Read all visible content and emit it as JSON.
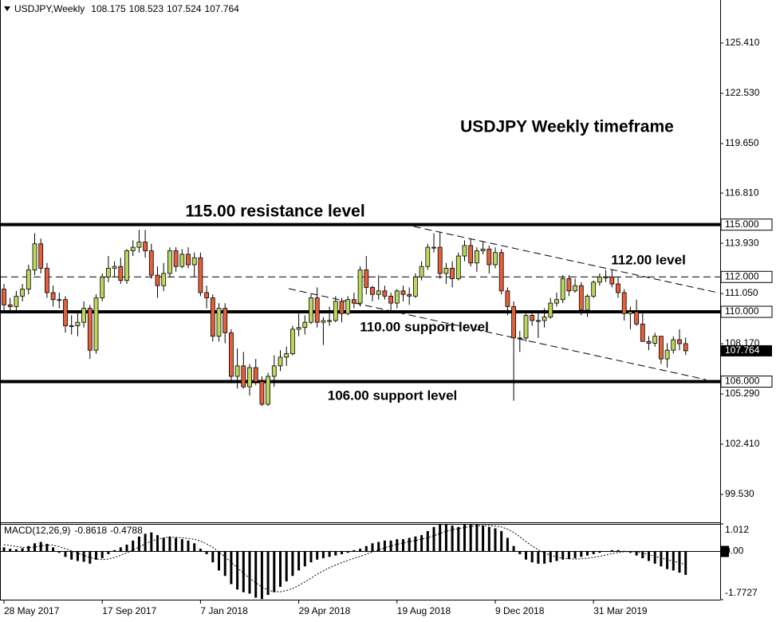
{
  "chart_data": [
    {
      "type": "candlestick",
      "title": "USDJPY,Weekly",
      "categories": [
        "28 May 2017",
        null,
        null,
        null,
        null,
        null,
        null,
        null,
        null,
        null,
        null,
        null,
        null,
        null,
        null,
        null,
        "17 Sep 2017",
        null,
        null,
        null,
        null,
        null,
        null,
        null,
        null,
        null,
        null,
        null,
        null,
        null,
        null,
        null,
        "7 Jan 2018",
        null,
        null,
        null,
        null,
        null,
        null,
        null,
        null,
        null,
        null,
        null,
        null,
        null,
        null,
        null,
        "29 Apr 2018",
        null,
        null,
        null,
        null,
        null,
        null,
        null,
        null,
        null,
        null,
        null,
        null,
        null,
        null,
        null,
        "19 Aug 2018",
        null,
        null,
        null,
        null,
        null,
        null,
        null,
        null,
        null,
        null,
        null,
        null,
        null,
        null,
        null,
        "9 Dec 2018",
        null,
        null,
        null,
        null,
        null,
        null,
        null,
        null,
        null,
        null,
        null,
        null,
        null,
        null,
        null,
        "31 Mar 2019",
        null,
        null,
        null,
        null,
        null,
        null,
        null,
        null,
        null,
        null,
        null,
        null,
        null,
        null,
        null
      ],
      "open": [
        111.3,
        110.4,
        110.3,
        110.9,
        111.3,
        112.4,
        113.9,
        112.5,
        111.1,
        110.7,
        110.7,
        109.2,
        109.2,
        109.4,
        110.2,
        107.8,
        110.8,
        112.0,
        112.5,
        112.6,
        111.8,
        113.5,
        113.7,
        114.0,
        113.5,
        112.1,
        111.5,
        112.2,
        113.5,
        112.6,
        113.3,
        112.7,
        113.1,
        111.1,
        110.8,
        108.6,
        110.2,
        108.8,
        106.3,
        106.9,
        105.7,
        106.8,
        106.0,
        104.7,
        106.3,
        106.9,
        107.4,
        107.6,
        109.0,
        109.1,
        109.4,
        110.8,
        109.4,
        109.5,
        109.5,
        110.6,
        109.9,
        110.7,
        110.5,
        112.4,
        111.4,
        111.0,
        111.2,
        110.9,
        110.5,
        111.2,
        111.0,
        110.9,
        112.0,
        112.6,
        113.7,
        113.7,
        112.2,
        112.5,
        111.9,
        113.2,
        113.8,
        112.8,
        113.5,
        113.6,
        112.7,
        113.4,
        111.2,
        110.3,
        108.5,
        108.5,
        109.8,
        109.5,
        109.5,
        109.7,
        110.5,
        110.7,
        111.9,
        111.2,
        111.5,
        110.1,
        110.9,
        111.7,
        112.0,
        112.0,
        111.6,
        111.1,
        109.9,
        110.0,
        109.3,
        108.3,
        108.2,
        108.6,
        107.3,
        107.8,
        108.4,
        108.175
      ],
      "high": [
        111.6,
        110.8,
        111.2,
        111.6,
        112.7,
        114.5,
        114.2,
        112.8,
        111.5,
        111.1,
        110.9,
        109.8,
        110.0,
        110.6,
        110.4,
        111.0,
        112.2,
        113.2,
        112.9,
        113.1,
        113.6,
        114.1,
        114.7,
        114.7,
        113.9,
        112.6,
        112.8,
        113.7,
        113.7,
        113.6,
        113.7,
        113.4,
        113.4,
        111.5,
        111.0,
        110.5,
        110.5,
        109.0,
        107.9,
        107.7,
        107.0,
        107.3,
        106.3,
        106.5,
        107.5,
        107.8,
        108.0,
        109.2,
        109.9,
        109.8,
        111.0,
        111.4,
        109.7,
        110.3,
        110.9,
        110.8,
        110.9,
        111.1,
        112.6,
        113.2,
        111.5,
        112.1,
        111.5,
        111.1,
        111.3,
        111.5,
        111.4,
        112.2,
        112.9,
        113.9,
        114.5,
        114.6,
        112.8,
        112.9,
        113.4,
        114.1,
        114.2,
        113.7,
        114.0,
        113.8,
        113.7,
        113.6,
        111.4,
        110.6,
        108.9,
        109.9,
        110.0,
        110.0,
        110.2,
        110.8,
        111.1,
        112.1,
        112.1,
        111.9,
        111.7,
        111.0,
        111.8,
        112.2,
        112.4,
        112.4,
        112.0,
        111.3,
        110.3,
        110.7,
        109.9,
        108.6,
        108.8,
        108.6,
        108.2,
        108.6,
        109.0,
        108.523
      ],
      "low": [
        110.0,
        109.9,
        110.0,
        110.6,
        111.0,
        112.1,
        112.2,
        110.8,
        110.3,
        110.2,
        108.8,
        108.7,
        108.6,
        109.1,
        107.3,
        107.6,
        110.6,
        111.7,
        112.0,
        111.6,
        111.6,
        113.2,
        113.4,
        113.1,
        111.9,
        110.8,
        111.2,
        112.0,
        112.3,
        112.5,
        112.5,
        112.0,
        110.9,
        110.2,
        108.3,
        108.3,
        108.2,
        105.9,
        105.6,
        105.6,
        105.2,
        105.8,
        104.6,
        104.6,
        105.7,
        106.6,
        106.9,
        107.5,
        108.6,
        108.7,
        109.3,
        109.1,
        108.1,
        109.2,
        109.4,
        109.4,
        109.8,
        110.2,
        110.3,
        111.0,
        110.6,
        110.7,
        110.7,
        110.1,
        110.2,
        110.6,
        110.4,
        110.8,
        111.8,
        112.4,
        113.4,
        111.9,
        111.6,
        111.4,
        111.8,
        112.9,
        112.6,
        112.3,
        113.3,
        112.2,
        112.5,
        111.0,
        109.8,
        104.9,
        107.7,
        108.3,
        109.2,
        108.5,
        109.1,
        109.6,
        110.3,
        110.5,
        110.9,
        111.1,
        109.8,
        109.7,
        110.8,
        111.5,
        111.7,
        111.4,
        110.8,
        109.5,
        109.0,
        109.2,
        108.3,
        107.8,
        108.0,
        107.0,
        106.8,
        107.6,
        107.8,
        107.524
      ],
      "close": [
        110.4,
        110.3,
        110.9,
        111.3,
        112.4,
        113.9,
        112.5,
        111.1,
        110.7,
        110.7,
        109.2,
        109.2,
        109.4,
        110.2,
        107.8,
        110.8,
        112.0,
        112.5,
        112.6,
        111.8,
        113.5,
        113.7,
        114.0,
        113.5,
        112.1,
        111.5,
        112.2,
        113.5,
        112.6,
        113.3,
        112.7,
        113.1,
        111.1,
        110.8,
        108.6,
        110.2,
        108.8,
        106.3,
        106.9,
        105.7,
        106.8,
        106.0,
        104.7,
        106.3,
        106.9,
        107.4,
        107.6,
        109.0,
        109.1,
        109.4,
        110.8,
        109.4,
        109.5,
        109.5,
        110.6,
        109.9,
        110.7,
        110.5,
        112.4,
        111.4,
        111.0,
        111.2,
        110.9,
        110.5,
        111.2,
        111.0,
        110.9,
        112.0,
        112.6,
        113.7,
        113.7,
        112.2,
        112.5,
        111.9,
        113.2,
        113.8,
        112.8,
        113.5,
        113.6,
        112.7,
        113.4,
        111.2,
        110.3,
        108.5,
        108.5,
        109.8,
        109.5,
        109.5,
        109.7,
        110.5,
        110.7,
        111.9,
        111.2,
        111.5,
        110.1,
        110.9,
        111.7,
        112.0,
        112.0,
        111.6,
        111.1,
        109.9,
        110.0,
        109.3,
        108.3,
        108.2,
        108.6,
        107.3,
        107.8,
        108.4,
        108.175,
        107.764
      ],
      "up_color": "#bcd85c",
      "down_color": "#e5603b",
      "ylim": [
        97.93,
        127.88
      ],
      "yticks": [
        {
          "value": 99.53,
          "label": "99.530"
        },
        {
          "value": 102.41,
          "label": "102.410"
        },
        {
          "value": 105.29,
          "label": "105.290"
        },
        {
          "value": 108.17,
          "label": "108.170"
        },
        {
          "value": 111.05,
          "label": "111.050"
        },
        {
          "value": 113.93,
          "label": "113.930"
        },
        {
          "value": 116.81,
          "label": "116.810"
        },
        {
          "value": 119.65,
          "label": "119.650"
        },
        {
          "value": 122.53,
          "label": "122.530"
        },
        {
          "value": 125.41,
          "label": "125.410"
        }
      ],
      "levels": [
        {
          "value": 115,
          "label": "115.000",
          "style": "solid"
        },
        {
          "value": 112,
          "label": "112.000",
          "style": "dashed"
        },
        {
          "value": 110,
          "label": "110.000",
          "style": "solid"
        },
        {
          "value": 106,
          "label": "106.000",
          "style": "solid"
        }
      ],
      "annotations": [
        "USDJPY Weekly timeframe",
        "115.00 resistance level",
        "112.00 level",
        "110.00 support level",
        "106.00 support level"
      ]
    },
    {
      "type": "macd",
      "title": "MACD(12,26,9)",
      "values": [
        0.15,
        0.1,
        0.08,
        0.12,
        0.2,
        0.3,
        0.35,
        0.28,
        0.15,
        -0.05,
        -0.2,
        -0.3,
        -0.35,
        -0.38,
        -0.45,
        -0.3,
        -0.25,
        -0.1,
        0.05,
        0.15,
        0.25,
        0.4,
        0.55,
        0.65,
        0.7,
        0.6,
        0.5,
        0.55,
        0.5,
        0.45,
        0.4,
        0.3,
        0.1,
        -0.1,
        -0.4,
        -0.7,
        -0.9,
        -1.2,
        -1.4,
        -1.5,
        -1.55,
        -1.7,
        -1.75,
        -1.6,
        -1.5,
        -1.3,
        -1.1,
        -0.9,
        -0.7,
        -0.55,
        -0.4,
        -0.3,
        -0.25,
        -0.2,
        -0.15,
        -0.1,
        -0.05,
        0.05,
        0.1,
        0.2,
        0.3,
        0.35,
        0.4,
        0.4,
        0.45,
        0.45,
        0.5,
        0.55,
        0.6,
        0.75,
        0.9,
        1.0,
        1.0,
        0.95,
        0.9,
        1.0,
        1.0,
        1.0,
        0.95,
        0.9,
        0.85,
        0.75,
        0.5,
        0.2,
        -0.1,
        -0.3,
        -0.4,
        -0.45,
        -0.45,
        -0.4,
        -0.35,
        -0.3,
        -0.28,
        -0.25,
        -0.2,
        -0.15,
        -0.1,
        -0.05,
        0,
        0.05,
        0.05,
        0.02,
        -0.05,
        -0.15,
        -0.25,
        -0.35,
        -0.45,
        -0.55,
        -0.65,
        -0.7,
        -0.78,
        -0.8618
      ],
      "signal": [
        0.25,
        0.22,
        0.18,
        0.15,
        0.14,
        0.16,
        0.2,
        0.23,
        0.23,
        0.18,
        0.1,
        0.02,
        -0.06,
        -0.14,
        -0.22,
        -0.28,
        -0.3,
        -0.28,
        -0.22,
        -0.14,
        -0.05,
        0.05,
        0.16,
        0.28,
        0.38,
        0.45,
        0.5,
        0.52,
        0.52,
        0.5,
        0.48,
        0.45,
        0.38,
        0.28,
        0.15,
        -0.02,
        -0.2,
        -0.4,
        -0.6,
        -0.8,
        -0.98,
        -1.15,
        -1.3,
        -1.42,
        -1.48,
        -1.48,
        -1.44,
        -1.36,
        -1.25,
        -1.12,
        -0.98,
        -0.84,
        -0.71,
        -0.6,
        -0.5,
        -0.41,
        -0.33,
        -0.25,
        -0.18,
        -0.1,
        -0.02,
        0.06,
        0.13,
        0.2,
        0.26,
        0.31,
        0.36,
        0.4,
        0.45,
        0.5,
        0.58,
        0.66,
        0.74,
        0.8,
        0.84,
        0.88,
        0.92,
        0.94,
        0.95,
        0.95,
        0.93,
        0.9,
        0.82,
        0.7,
        0.54,
        0.36,
        0.2,
        0.06,
        -0.05,
        -0.14,
        -0.2,
        -0.25,
        -0.27,
        -0.28,
        -0.27,
        -0.25,
        -0.22,
        -0.18,
        -0.13,
        -0.08,
        -0.04,
        -0.01,
        0,
        -0.02,
        -0.06,
        -0.12,
        -0.18,
        -0.24,
        -0.3,
        -0.36,
        -0.42,
        -0.4788
      ],
      "color": "#000000",
      "ylim": [
        -1.7727,
        1.012
      ],
      "yticks": [
        1.012,
        {
          "value": 0,
          "label": "0.00"
        },
        -1.7727
      ]
    }
  ]
}
